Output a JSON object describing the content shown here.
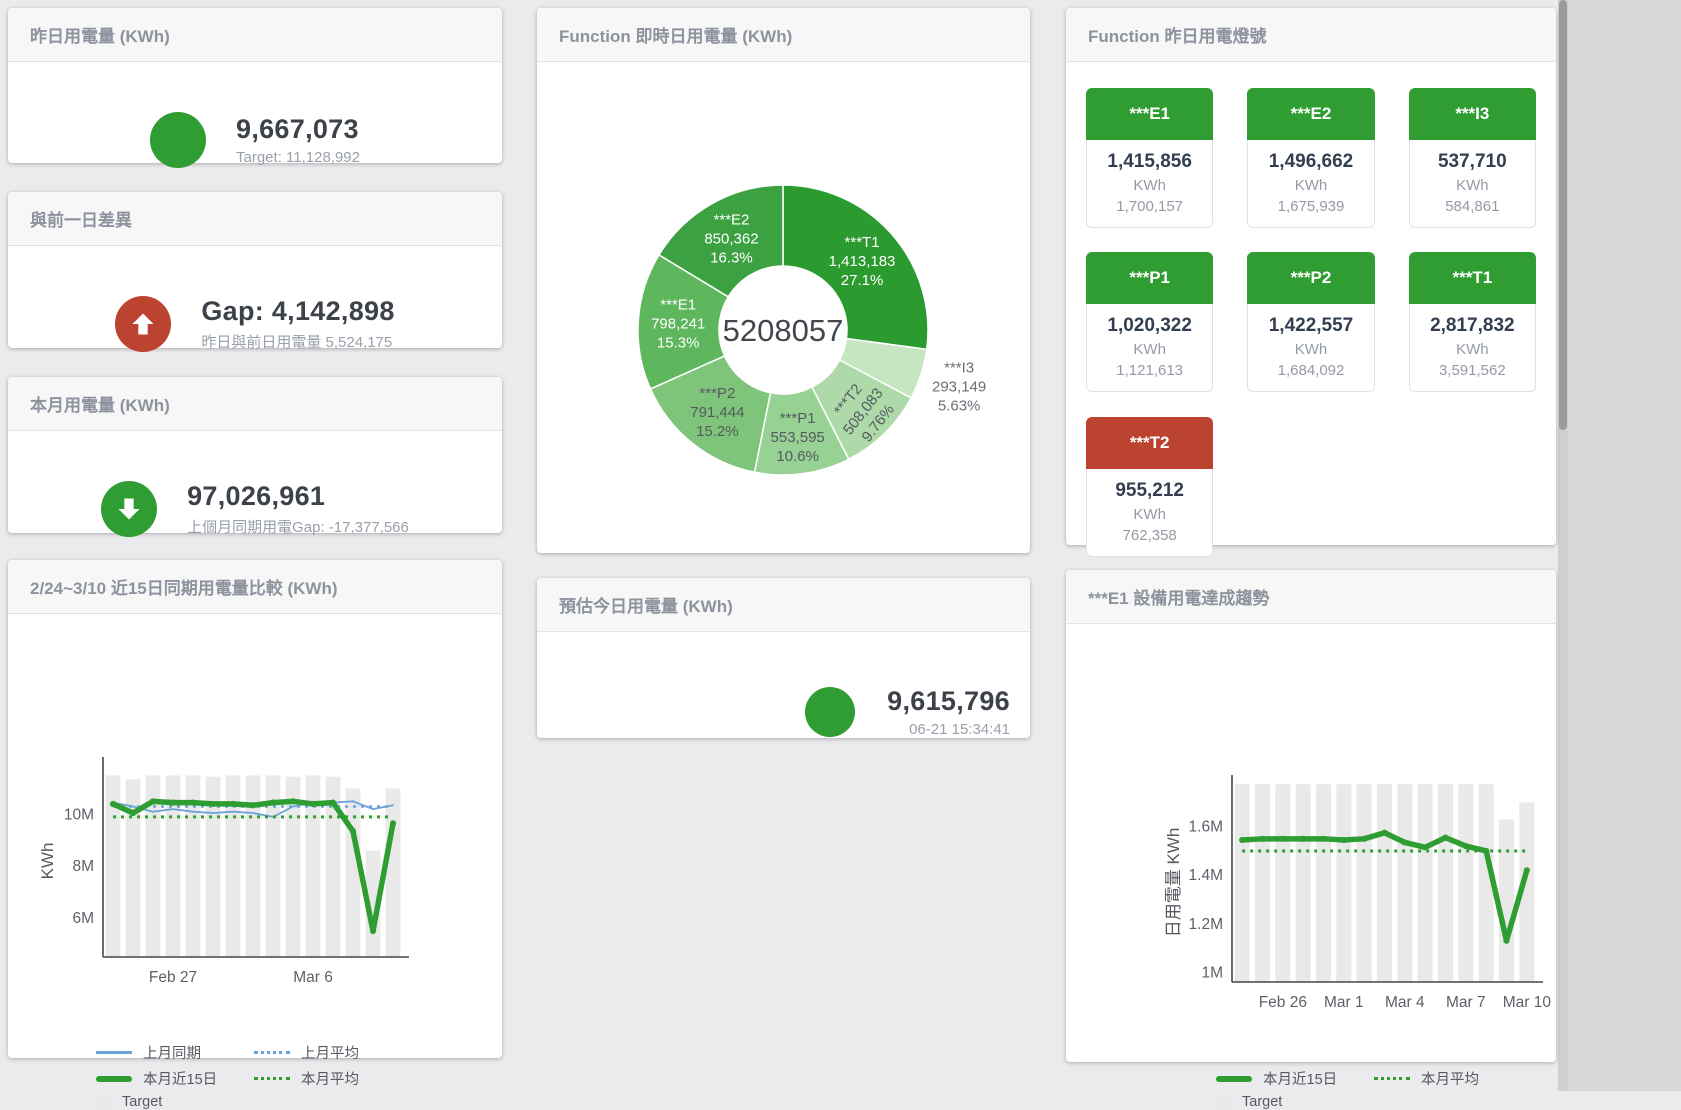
{
  "cards": {
    "yesterday": {
      "title": "昨日用電量 (KWh)",
      "value": "9,667,073",
      "target_label": "Target: 11,128,992",
      "status_color": "#2f9d31"
    },
    "diff": {
      "title": "與前一日差異",
      "value": "Gap: 4,142,898",
      "sub": "昨日與前日用電量 5,524,175",
      "status_color": "#bb432f",
      "direction": "up"
    },
    "month": {
      "title": "本月用電量 (KWh)",
      "value": "97,026,961",
      "sub": "上個月同期用電Gap: -17,377,566",
      "status_color": "#2f9d31",
      "direction": "down"
    },
    "estimate": {
      "title": "預估今日用電量 (KWh)",
      "value": "9,615,796",
      "timestamp": "06-21 15:34:41",
      "status_color": "#2f9d31"
    },
    "compare": {
      "title": "2/24~3/10 近15日同期用電量比較 (KWh)"
    },
    "realtime": {
      "title": "Function 即時日用電量 (KWh)"
    },
    "lights": {
      "title": "Function 昨日用電燈號",
      "tiles": [
        {
          "label": "***E1",
          "value": "1,415,856",
          "unit": "KWh",
          "prev": "1,700,157",
          "color_hex": "#2f9d31"
        },
        {
          "label": "***E2",
          "value": "1,496,662",
          "unit": "KWh",
          "prev": "1,675,939",
          "color_hex": "#2f9d31"
        },
        {
          "label": "***I3",
          "value": "537,710",
          "unit": "KWh",
          "prev": "584,861",
          "color_hex": "#2f9d31"
        },
        {
          "label": "***P1",
          "value": "1,020,322",
          "unit": "KWh",
          "prev": "1,121,613",
          "color_hex": "#2f9d31"
        },
        {
          "label": "***P2",
          "value": "1,422,557",
          "unit": "KWh",
          "prev": "1,684,092",
          "color_hex": "#2f9d31"
        },
        {
          "label": "***T1",
          "value": "2,817,832",
          "unit": "KWh",
          "prev": "3,591,562",
          "color_hex": "#2f9d31"
        },
        {
          "label": "***T2",
          "value": "955,212",
          "unit": "KWh",
          "prev": "762,358",
          "color_hex": "#bb432f"
        }
      ]
    },
    "trend": {
      "title": "***E1 設備用電達成趨勢"
    }
  },
  "chart_data": [
    {
      "type": "pie",
      "title": "Function 即時日用電量 (KWh)",
      "center_label": "5208057",
      "slices": [
        {
          "name": "***T1",
          "value": 1413183,
          "value_label": "1,413,183",
          "pct_label": "27.1%",
          "color": "#2b9a2f",
          "text": "#ffffff"
        },
        {
          "name": "***I3",
          "value": 293149,
          "value_label": "293,149",
          "pct_label": "5.63%",
          "color": "#c6e5c1",
          "text": "#6a6f76",
          "outside": true
        },
        {
          "name": "***T2",
          "value": 508083,
          "value_label": "508,083",
          "pct_label": "9.76%",
          "color": "#aed9a8",
          "text": "#555a61",
          "rotate": -52
        },
        {
          "name": "***P1",
          "value": 553595,
          "value_label": "553,595",
          "pct_label": "10.6%",
          "color": "#97d193",
          "text": "#555a61"
        },
        {
          "name": "***P2",
          "value": 791444,
          "value_label": "791,444",
          "pct_label": "15.2%",
          "color": "#7ec57b",
          "text": "#555a61"
        },
        {
          "name": "***E1",
          "value": 798241,
          "value_label": "798,241",
          "pct_label": "15.3%",
          "color": "#5eb75d",
          "text": "#ffffff"
        },
        {
          "name": "***E2",
          "value": 850362,
          "value_label": "850,362",
          "pct_label": "16.3%",
          "color": "#3ca140",
          "text": "#ffffff"
        }
      ]
    },
    {
      "type": "line",
      "title": "2/24~3/10 近15日同期用電量比較 (KWh)",
      "ylabel": "KWh",
      "ylim": [
        4.5,
        11.9
      ],
      "yticks": [
        {
          "value": 6,
          "label": "6M"
        },
        {
          "value": 8,
          "label": "8M"
        },
        {
          "value": 10,
          "label": "10M"
        }
      ],
      "xticks": [
        {
          "index": 3,
          "label": "Feb 27"
        },
        {
          "index": 10,
          "label": "Mar 6"
        }
      ],
      "target_bars": {
        "name": "Target",
        "color": "#e9e9e9",
        "values": [
          11.5,
          11.35,
          11.5,
          11.5,
          11.5,
          11.45,
          11.5,
          11.5,
          11.5,
          11.45,
          11.5,
          11.45,
          11.0,
          8.6,
          11.0
        ]
      },
      "series": [
        {
          "name": "上月平均",
          "style": "dotted",
          "color": "#6ba3d6",
          "width": 2.5,
          "flat": 10.3
        },
        {
          "name": "上月同期",
          "style": "solid",
          "color": "#6ba3d6",
          "width": 1.8,
          "values": [
            10.45,
            10.3,
            10.1,
            10.2,
            10.1,
            10.05,
            10.1,
            10.05,
            9.9,
            10.3,
            10.45,
            10.45,
            10.5,
            10.2,
            10.35
          ]
        },
        {
          "name": "本月平均",
          "style": "dotted",
          "color": "#2f9e32",
          "width": 3,
          "flat": 9.9
        },
        {
          "name": "本月近15日",
          "style": "solid",
          "color": "#2f9e32",
          "width": 5.5,
          "markers": true,
          "values": [
            10.4,
            10.05,
            10.5,
            10.45,
            10.45,
            10.4,
            10.4,
            10.35,
            10.45,
            10.5,
            10.4,
            10.45,
            9.35,
            5.5,
            9.65
          ]
        }
      ],
      "legend": [
        {
          "label": "上月同期",
          "swatch": "line",
          "color": "#6ba3d6"
        },
        {
          "label": "上月平均",
          "swatch": "dots",
          "color": "#6ba3d6"
        },
        {
          "label": "本月近15日",
          "swatch": "line-thick",
          "color": "#2f9e32"
        },
        {
          "label": "本月平均",
          "swatch": "dots",
          "color": "#2f9e32"
        },
        {
          "label": "Target",
          "swatch": "square",
          "color": "#e9e9e9"
        }
      ]
    },
    {
      "type": "line",
      "title": "***E1 設備用電達成趨勢",
      "ylabel": "日用電量 KWh",
      "ylim": [
        0.96,
        1.78
      ],
      "yticks": [
        {
          "value": 1,
          "label": "1M"
        },
        {
          "value": 1.2,
          "label": "1.2M"
        },
        {
          "value": 1.4,
          "label": "1.4M"
        },
        {
          "value": 1.6,
          "label": "1.6M"
        }
      ],
      "xticks": [
        {
          "index": 2,
          "label": "Feb 26"
        },
        {
          "index": 5,
          "label": "Mar 1"
        },
        {
          "index": 8,
          "label": "Mar 4"
        },
        {
          "index": 11,
          "label": "Mar 7"
        },
        {
          "index": 14,
          "label": "Mar 10"
        }
      ],
      "target_bars": {
        "name": "Target",
        "color": "#e9e9e9",
        "values": [
          1.775,
          1.775,
          1.775,
          1.775,
          1.775,
          1.775,
          1.775,
          1.775,
          1.775,
          1.775,
          1.775,
          1.775,
          1.775,
          1.63,
          1.7
        ]
      },
      "series": [
        {
          "name": "本月平均",
          "style": "dotted",
          "color": "#2f9e32",
          "width": 3,
          "flat": 1.5
        },
        {
          "name": "本月近15日",
          "style": "solid",
          "color": "#2f9e32",
          "width": 5.5,
          "markers": true,
          "values": [
            1.545,
            1.55,
            1.55,
            1.55,
            1.55,
            1.545,
            1.55,
            1.575,
            1.535,
            1.515,
            1.555,
            1.52,
            1.5,
            1.13,
            1.42
          ]
        }
      ],
      "legend": [
        {
          "label": "本月近15日",
          "swatch": "line-thick",
          "color": "#2f9e32"
        },
        {
          "label": "本月平均",
          "swatch": "dots",
          "color": "#2f9e32"
        },
        {
          "label": "Target",
          "swatch": "square",
          "color": "#e9e9e9"
        }
      ]
    }
  ]
}
